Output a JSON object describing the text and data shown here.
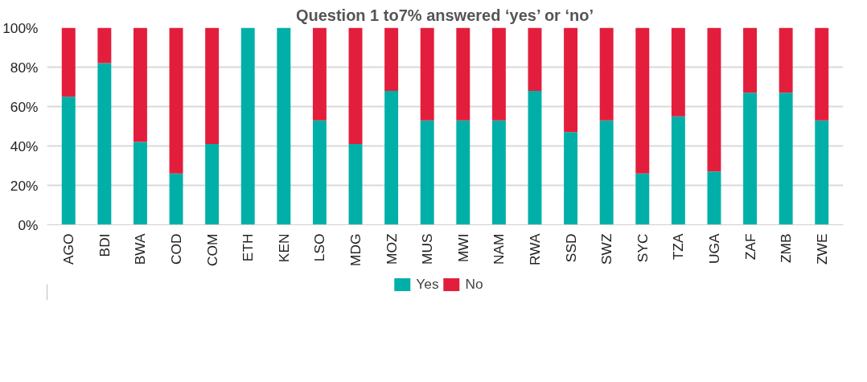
{
  "chart_data": {
    "type": "bar",
    "title": "Question 1 to7% answered ‘yes’ or ‘no’",
    "stacked": true,
    "categories": [
      "AGO",
      "BDI",
      "BWA",
      "COD",
      "COM",
      "ETH",
      "KEN",
      "LSO",
      "MDG",
      "MOZ",
      "MUS",
      "MWI",
      "NAM",
      "RWA",
      "SSD",
      "SWZ",
      "SYC",
      "TZA",
      "UGA",
      "ZAF",
      "ZMB",
      "ZWE"
    ],
    "series": [
      {
        "name": "Yes",
        "color": "#00b0a8",
        "values": [
          65,
          82,
          42,
          26,
          41,
          100,
          100,
          53,
          41,
          68,
          53,
          53,
          53,
          68,
          47,
          53,
          26,
          55,
          27,
          67,
          67,
          53
        ]
      },
      {
        "name": "No",
        "color": "#e31e3c",
        "values": [
          35,
          18,
          58,
          74,
          59,
          0,
          0,
          47,
          59,
          32,
          47,
          47,
          47,
          32,
          53,
          47,
          74,
          45,
          73,
          33,
          33,
          47
        ]
      }
    ],
    "ylim": [
      0,
      100
    ],
    "yticks": [
      {
        "value": 0,
        "label": "0%"
      },
      {
        "value": 20,
        "label": "20%"
      },
      {
        "value": 40,
        "label": "40%"
      },
      {
        "value": 60,
        "label": "60%"
      },
      {
        "value": 80,
        "label": "80%"
      },
      {
        "value": 100,
        "label": "100%"
      }
    ],
    "grid": "y",
    "legend": "bottom"
  }
}
